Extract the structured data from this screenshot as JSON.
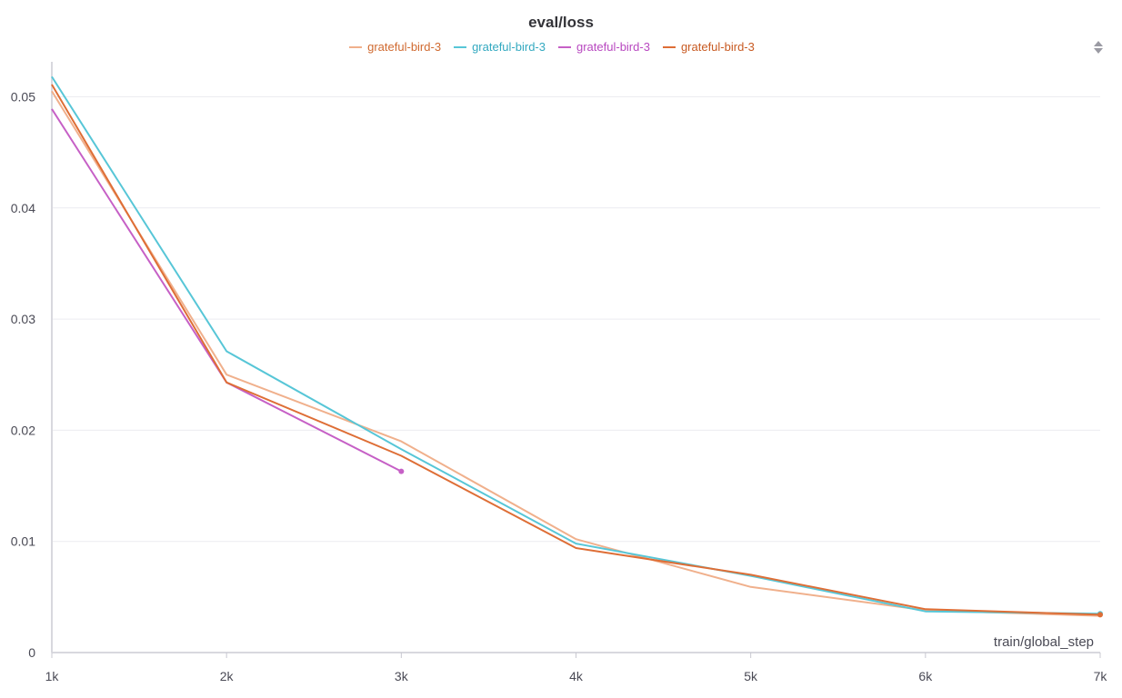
{
  "chart_data": {
    "type": "line",
    "title": "eval/loss",
    "xlabel": "train/global_step",
    "ylabel": "",
    "xlim": [
      1000,
      7000
    ],
    "ylim": [
      0,
      0.052
    ],
    "x_ticks": [
      {
        "value": 1000,
        "label": "1k"
      },
      {
        "value": 2000,
        "label": "2k"
      },
      {
        "value": 3000,
        "label": "3k"
      },
      {
        "value": 4000,
        "label": "4k"
      },
      {
        "value": 5000,
        "label": "5k"
      },
      {
        "value": 6000,
        "label": "6k"
      },
      {
        "value": 7000,
        "label": "7k"
      }
    ],
    "y_ticks": [
      {
        "value": 0,
        "label": "0"
      },
      {
        "value": 0.01,
        "label": "0.01"
      },
      {
        "value": 0.02,
        "label": "0.02"
      },
      {
        "value": 0.03,
        "label": "0.03"
      },
      {
        "value": 0.04,
        "label": "0.04"
      },
      {
        "value": 0.05,
        "label": "0.05"
      }
    ],
    "grid": true,
    "legend_position": "top-center",
    "series": [
      {
        "name": "grateful-bird-3",
        "color": "#f0b08c",
        "label_color": "#d06a30",
        "end_marker": false,
        "points": [
          [
            1000,
            0.0505
          ],
          [
            2000,
            0.025
          ],
          [
            3000,
            0.019
          ],
          [
            4000,
            0.0102
          ],
          [
            5000,
            0.0059
          ],
          [
            6000,
            0.0038
          ],
          [
            7000,
            0.0033
          ]
        ]
      },
      {
        "name": "grateful-bird-3",
        "color": "#57c6d7",
        "label_color": "#33a9c0",
        "end_marker": true,
        "points": [
          [
            1000,
            0.0518
          ],
          [
            2000,
            0.0271
          ],
          [
            3000,
            0.0183
          ],
          [
            4000,
            0.0098
          ],
          [
            5000,
            0.0069
          ],
          [
            6000,
            0.0037
          ],
          [
            7000,
            0.0035
          ]
        ]
      },
      {
        "name": "grateful-bird-3",
        "color": "#c660c6",
        "label_color": "#b848c0",
        "end_marker": true,
        "points": [
          [
            1000,
            0.0489
          ],
          [
            2000,
            0.0243
          ],
          [
            3000,
            0.0163
          ]
        ]
      },
      {
        "name": "grateful-bird-3",
        "color": "#de6e36",
        "label_color": "#c85a22",
        "end_marker": true,
        "points": [
          [
            1000,
            0.0511
          ],
          [
            2000,
            0.0243
          ],
          [
            3000,
            0.0177
          ],
          [
            4000,
            0.0094
          ],
          [
            5000,
            0.007
          ],
          [
            6000,
            0.0039
          ],
          [
            7000,
            0.0034
          ]
        ]
      }
    ]
  },
  "icons": {
    "sort": "sort-updown-icon"
  }
}
